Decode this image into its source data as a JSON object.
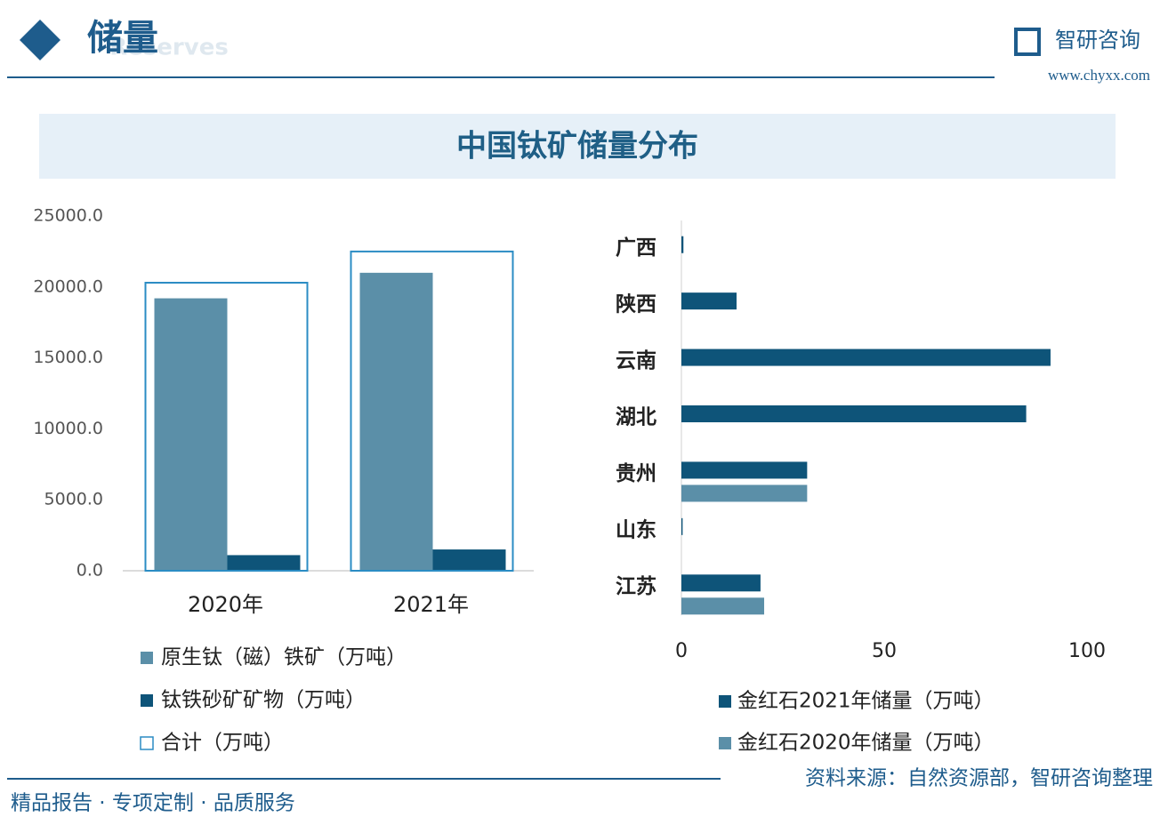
{
  "header": {
    "title": "储量",
    "subtitle": "Reserves",
    "brand": "智研咨询",
    "url": "www.chyxx.com"
  },
  "banner": {
    "title": "中国钛矿储量分布"
  },
  "chart_data": [
    {
      "type": "bar",
      "orientation": "vertical",
      "categories": [
        "2020年",
        "2021年"
      ],
      "series": [
        {
          "name": "原生钛（磁）铁矿（万吨）",
          "color": "#5b8fa8",
          "values": [
            19200,
            21000
          ]
        },
        {
          "name": "钛铁砂矿矿物（万吨）",
          "color": "#0e5479",
          "values": [
            1100,
            1500
          ]
        },
        {
          "name": "合计（万吨）",
          "color": "#2b8cc4",
          "hollow": true,
          "values": [
            20300,
            22500
          ]
        }
      ],
      "ylim": [
        0,
        25000
      ],
      "yticks": [
        {
          "value": 0,
          "label": "0.0"
        },
        {
          "value": 5000,
          "label": "5000.0"
        },
        {
          "value": 10000,
          "label": "10000.0"
        },
        {
          "value": 15000,
          "label": "15000.0"
        },
        {
          "value": 20000,
          "label": "20000.0"
        },
        {
          "value": 25000,
          "label": "25000.0"
        }
      ]
    },
    {
      "type": "bar",
      "orientation": "horizontal",
      "categories": [
        "广西",
        "陕西",
        "云南",
        "湖北",
        "贵州",
        "山东",
        "江苏"
      ],
      "series": [
        {
          "name": "金红石2021年储量（万吨）",
          "color": "#0e5479",
          "values": [
            0.5,
            13.6,
            91,
            85,
            31,
            0.3,
            19.5
          ]
        },
        {
          "name": "金红石2020年储量（万吨）",
          "color": "#5b8fa8",
          "values": [
            null,
            null,
            null,
            null,
            31,
            null,
            20.4
          ]
        }
      ],
      "xlim": [
        0,
        100
      ],
      "xticks": [
        0,
        50,
        100
      ]
    }
  ],
  "footer": {
    "slogan": "精品报告 · 专项定制 · 品质服务",
    "source": "资料来源：自然资源部，智研咨询整理"
  }
}
